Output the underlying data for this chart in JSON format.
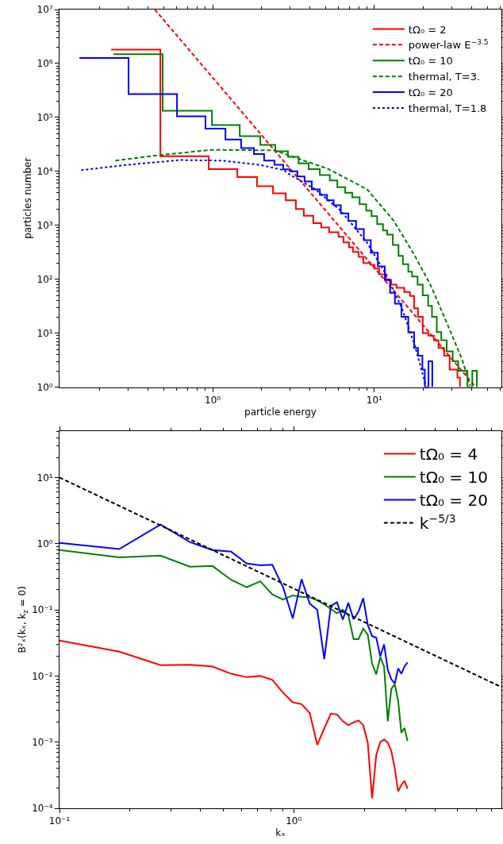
{
  "chart_data": [
    {
      "type": "step",
      "xlabel": "particle energy",
      "ylabel": "particles number",
      "log": "xy",
      "legend": "top right",
      "xlim": [
        0.113,
        61
      ],
      "ylim": [
        1,
        10000000
      ],
      "xticks": [
        {
          "value": 1,
          "label": "10⁰"
        },
        {
          "value": 10,
          "label": "10¹"
        }
      ],
      "yticks": [
        {
          "value": 1,
          "label": "10⁰"
        },
        {
          "value": 10,
          "label": "10¹"
        },
        {
          "value": 100,
          "label": "10²"
        },
        {
          "value": 1000,
          "label": "10³"
        },
        {
          "value": 10000,
          "label": "10⁴"
        },
        {
          "value": 100000,
          "label": "10⁵"
        },
        {
          "value": 1000000,
          "label": "10⁶"
        },
        {
          "value": 10000000,
          "label": "10⁷"
        }
      ],
      "series": [
        {
          "name": "tΩ₀ = 2",
          "color": "#ff0000",
          "type": "step",
          "line_style": "solid",
          "x": [
            0.236,
            0.475,
            0.945,
            1.42,
            1.88,
            2.36,
            2.83,
            3.27,
            3.66,
            4.19,
            4.69,
            5.25,
            6.0,
            6.44,
            6.97,
            7.37,
            7.98,
            8.54,
            9.43,
            10.0,
            10.7,
            11.8,
            12.7,
            13.7,
            15.3,
            16.6,
            17.6,
            18.6,
            19.9,
            21.6,
            23.3,
            24.9,
            27.0,
            29.2,
            32.6,
            33.8
          ],
          "values": [
            1800000,
            19000,
            11000,
            7800,
            5300,
            3900,
            2900,
            2000,
            1500,
            1100,
            910,
            740,
            610,
            480,
            390,
            320,
            260,
            200,
            185,
            157,
            123,
            97,
            79,
            69,
            58,
            49,
            29,
            20,
            10,
            9,
            7.4,
            5.3,
            3.8,
            2.1,
            1.5,
            1
          ]
        },
        {
          "name": "power-law E$^{−3.5}$",
          "color": "#ff0000",
          "type": "line",
          "line_style": "dashed",
          "x": [
            0.439,
            41.5
          ],
          "values": [
            10000000,
            1.07
          ]
        },
        {
          "name": "tΩ₀ = 10",
          "color": "#008000",
          "type": "step",
          "line_style": "solid",
          "x": [
            0.244,
            0.491,
            0.99,
            1.47,
            1.97,
            2.44,
            2.92,
            3.4,
            3.92,
            4.6,
            5.3,
            5.9,
            6.6,
            7.3,
            8.1,
            8.9,
            9.6,
            10.4,
            11.3,
            12.0,
            13.0,
            14.1,
            15.0,
            16.2,
            17.1,
            18.5,
            19.9,
            21.5,
            22.7,
            24.3,
            25.9,
            28.0,
            30.5,
            33.0,
            37.6,
            40.3,
            43.0
          ],
          "values": [
            1480000,
            133000,
            72000,
            45000,
            31000,
            23500,
            18600,
            14000,
            11000,
            8500,
            6800,
            5100,
            4000,
            3300,
            2450,
            1870,
            1470,
            1050,
            800,
            670,
            430,
            270,
            190,
            137,
            112,
            79,
            50,
            32,
            20,
            10.5,
            7.4,
            4.6,
            3,
            2,
            1,
            2,
            1
          ]
        },
        {
          "name": "thermal, T=3.",
          "color": "#008000",
          "type": "line",
          "line_style": "dashed",
          "x": [
            0.25,
            0.465,
            0.99,
            2.44,
            2.92,
            5.14,
            9.0,
            13.2,
            17.8,
            22.2,
            27.9,
            34.8,
            39.1
          ],
          "values": [
            15800,
            20000,
            25000,
            24500,
            20000,
            11200,
            4650,
            1200,
            270,
            79,
            16,
            3.3,
            1.07
          ]
        },
        {
          "name": "tΩ₀ = 20",
          "color": "#0000ff",
          "type": "step",
          "line_style": "solid",
          "x": [
            0.15,
            0.302,
            0.602,
            0.903,
            1.2,
            1.5,
            1.8,
            2.08,
            2.41,
            2.73,
            3.0,
            3.34,
            3.7,
            4.1,
            4.6,
            5.1,
            5.6,
            6.2,
            6.9,
            7.7,
            8.6,
            9.5,
            10.5,
            11.6,
            12.5,
            13.4,
            14.7,
            16.2,
            17.6,
            18.6,
            19.8,
            20.5,
            21.6,
            22.8
          ],
          "values": [
            1260000,
            270000,
            105000,
            62000,
            39000,
            27000,
            21000,
            15800,
            13200,
            10900,
            10000,
            8000,
            6500,
            4650,
            3650,
            2900,
            2350,
            1660,
            1200,
            850,
            530,
            310,
            173,
            97,
            56,
            35,
            20,
            10.4,
            5.3,
            3.8,
            2.1,
            1,
            3,
            1
          ]
        },
        {
          "name": "thermal, T=1.8",
          "color": "#0000ff",
          "type": "line",
          "line_style": "dotted",
          "x": [
            0.154,
            0.296,
            0.63,
            1.14,
            1.95,
            2.76,
            2.92,
            4.28,
            6.2,
            9.0,
            11.8,
            14.8,
            17.8,
            20.8
          ],
          "values": [
            10500,
            13200,
            16200,
            15800,
            13200,
            10500,
            9100,
            4700,
            1860,
            480,
            123,
            29,
            5.8,
            1.07
          ]
        }
      ]
    },
    {
      "type": "line",
      "xlabel": "kₓ",
      "ylabel": "B²ₓ(kₓ, k$_{z}$ = 0)",
      "log": "xy",
      "legend": "top right",
      "xlim": [
        0.1,
        7.7
      ],
      "ylim": [
        0.0001,
        51
      ],
      "xticks": [
        {
          "value": 0.1,
          "label": "10⁻¹"
        },
        {
          "value": 1,
          "label": "10⁰"
        }
      ],
      "yticks": [
        {
          "value": 0.0001,
          "label": "10⁻⁴"
        },
        {
          "value": 0.001,
          "label": "10⁻³"
        },
        {
          "value": 0.01,
          "label": "10⁻²"
        },
        {
          "value": 0.1,
          "label": "10⁻¹"
        },
        {
          "value": 1,
          "label": "10⁰"
        },
        {
          "value": 10,
          "label": "10¹"
        }
      ],
      "x": [
        0.1,
        0.18,
        0.27,
        0.36,
        0.45,
        0.54,
        0.63,
        0.72,
        0.81,
        0.9,
        0.99,
        1.08,
        1.17,
        1.26,
        1.35,
        1.44,
        1.53,
        1.62,
        1.71,
        1.8,
        1.89,
        1.98,
        2.07,
        2.16,
        2.25,
        2.34,
        2.43,
        2.52,
        2.61,
        2.7,
        2.79,
        2.88,
        2.97,
        3.06
      ],
      "series": [
        {
          "name": "tΩ₀ = 4",
          "color": "#ff0000",
          "line_style": "solid",
          "values": [
            0.0343,
            0.0233,
            0.0146,
            0.0148,
            0.0139,
            0.0108,
            0.0096,
            0.01,
            0.0087,
            0.0056,
            0.004,
            0.00375,
            0.00275,
            0.00091,
            0.00161,
            0.0027,
            0.00262,
            0.00207,
            0.0018,
            0.00198,
            0.00213,
            0.0018,
            0.00098,
            0.000142,
            0.00064,
            0.001,
            0.00109,
            0.00098,
            0.00073,
            0.0004,
            0.000179,
            0.000226,
            0.000259,
            0.000197
          ]
        },
        {
          "name": "tΩ₀ = 10",
          "color": "#008000",
          "line_style": "solid",
          "values": [
            0.8,
            0.62,
            0.66,
            0.45,
            0.46,
            0.285,
            0.22,
            0.27,
            0.171,
            0.143,
            0.165,
            0.157,
            0.155,
            0.139,
            0.121,
            0.103,
            0.089,
            0.1,
            0.083,
            0.036,
            0.036,
            0.052,
            0.042,
            0.0154,
            0.0106,
            0.0193,
            0.0139,
            0.00207,
            0.0064,
            0.0075,
            0.0042,
            0.00138,
            0.00164,
            0.00104
          ]
        },
        {
          "name": "tΩ₀ = 20",
          "color": "#0000ff",
          "line_style": "solid",
          "values": [
            1.03,
            0.83,
            1.95,
            1.06,
            0.8,
            0.76,
            0.5,
            0.47,
            0.48,
            0.22,
            0.074,
            0.29,
            0.124,
            0.1,
            0.018,
            0.115,
            0.13,
            0.071,
            0.128,
            0.072,
            0.094,
            0.15,
            0.059,
            0.04,
            0.038,
            0.0198,
            0.03,
            0.0124,
            0.0089,
            0.0077,
            0.013,
            0.0108,
            0.0139,
            0.016
          ]
        },
        {
          "name": "k$^{−5/3}$",
          "color": "#000000",
          "line_style": "dashed",
          "x": [
            0.1,
            7.7
          ],
          "values": [
            10,
            0.0068
          ]
        }
      ]
    }
  ]
}
